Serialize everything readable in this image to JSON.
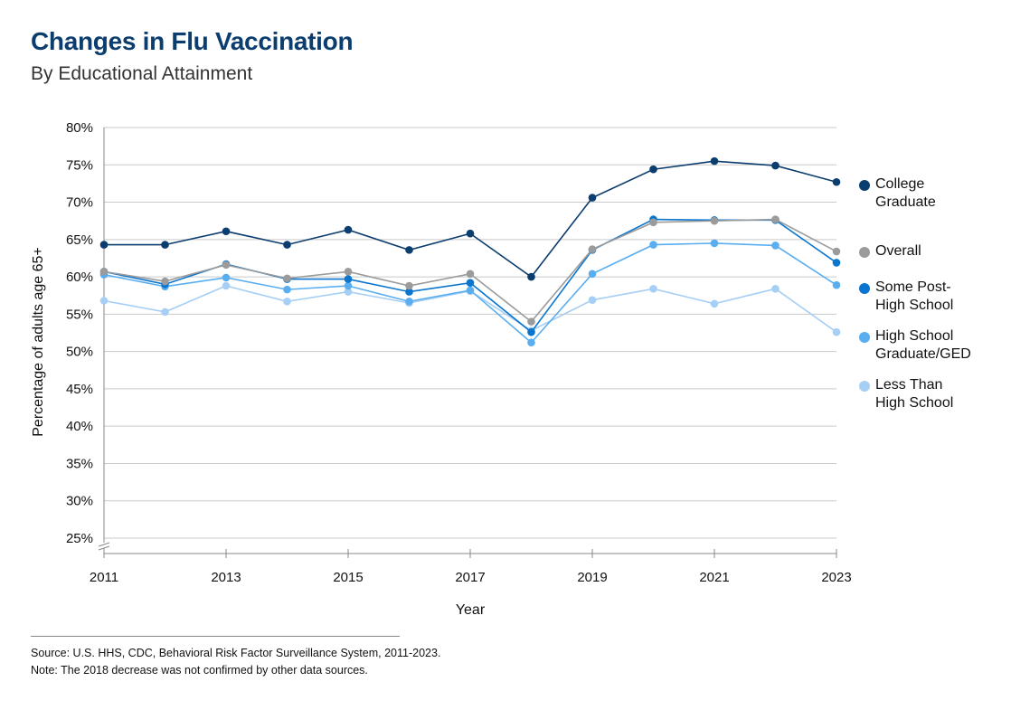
{
  "title": "Changes in Flu Vaccination",
  "subtitle": "By Educational Attainment",
  "chart_data": {
    "type": "line",
    "x": [
      2011,
      2012,
      2013,
      2014,
      2015,
      2016,
      2017,
      2018,
      2019,
      2020,
      2021,
      2022,
      2023
    ],
    "x_tick_labels": [
      "2011",
      "2013",
      "2015",
      "2017",
      "2019",
      "2021",
      "2023"
    ],
    "x_tick_values": [
      2011,
      2013,
      2015,
      2017,
      2019,
      2021,
      2023
    ],
    "y_tick_labels": [
      "25%",
      "30%",
      "35%",
      "40%",
      "45%",
      "50%",
      "55%",
      "60%",
      "65%",
      "70%",
      "75%",
      "80%"
    ],
    "y_tick_values": [
      25,
      30,
      35,
      40,
      45,
      50,
      55,
      60,
      65,
      70,
      75,
      80
    ],
    "ylim": [
      25,
      80
    ],
    "xlabel": "Year",
    "ylabel": "Percentage of adults age 65+",
    "grid": "horizontal",
    "legend_position": "right",
    "series": [
      {
        "name": "College Graduate",
        "color": "#0b3d6e",
        "values": [
          64.3,
          64.3,
          66.1,
          64.3,
          66.3,
          63.6,
          65.8,
          60.0,
          70.6,
          74.4,
          75.5,
          74.9,
          72.7
        ]
      },
      {
        "name": "Overall",
        "color": "#9b9b9b",
        "values": [
          60.7,
          59.4,
          61.6,
          59.8,
          60.7,
          58.8,
          60.4,
          54.0,
          63.7,
          67.3,
          67.5,
          67.7,
          63.4
        ]
      },
      {
        "name": "Some Post-High School",
        "color": "#0a75cf",
        "values": [
          60.7,
          59.0,
          61.7,
          59.7,
          59.7,
          58.0,
          59.2,
          52.6,
          63.6,
          67.7,
          67.6,
          67.6,
          61.9
        ]
      },
      {
        "name": "High School Graduate/GED",
        "color": "#5aaef0",
        "values": [
          60.3,
          58.7,
          59.9,
          58.3,
          58.8,
          56.7,
          58.2,
          51.2,
          60.4,
          64.3,
          64.5,
          64.2,
          58.9
        ]
      },
      {
        "name": "Less Than High School",
        "color": "#a6cff5",
        "values": [
          56.8,
          55.3,
          58.8,
          56.7,
          58.0,
          56.5,
          58.1,
          52.8,
          56.9,
          58.4,
          56.4,
          58.4,
          52.6
        ]
      }
    ],
    "legend": [
      {
        "label": "College\nGraduate",
        "color": "#0b3d6e"
      },
      {
        "label": "Overall",
        "color": "#9b9b9b"
      },
      {
        "label": "Some Post-\nHigh School",
        "color": "#0a75cf"
      },
      {
        "label": "High School\nGraduate/GED",
        "color": "#5aaef0"
      },
      {
        "label": "Less Than\nHigh School",
        "color": "#a6cff5"
      }
    ]
  },
  "source_line": "Source: U.S. HHS, CDC, Behavioral Risk Factor Surveillance System, 2011-2023.",
  "note_line": "Note: The 2018 decrease was not confirmed by other data sources."
}
